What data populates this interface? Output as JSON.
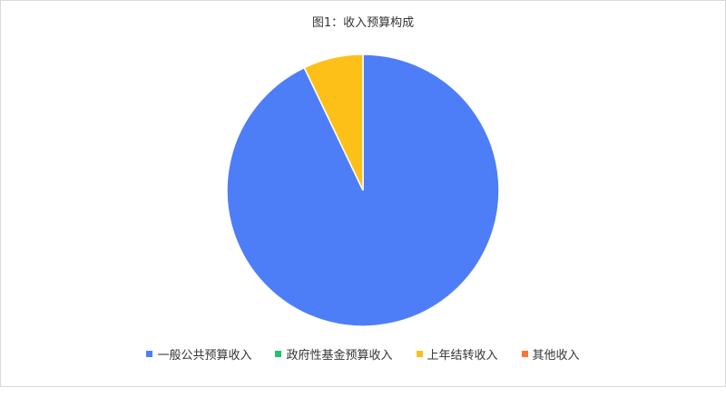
{
  "chart_data": {
    "type": "pie",
    "title": "图1：收入预算构成",
    "categories": [
      "一般公共预算收入",
      "政府性基金预算收入",
      "上年结转收入",
      "其他收入"
    ],
    "values": [
      92.9,
      0,
      7.1,
      0
    ],
    "colors": [
      "#4e7ef7",
      "#1fc46f",
      "#fcc019",
      "#fb7535"
    ],
    "legend": "bottom"
  }
}
